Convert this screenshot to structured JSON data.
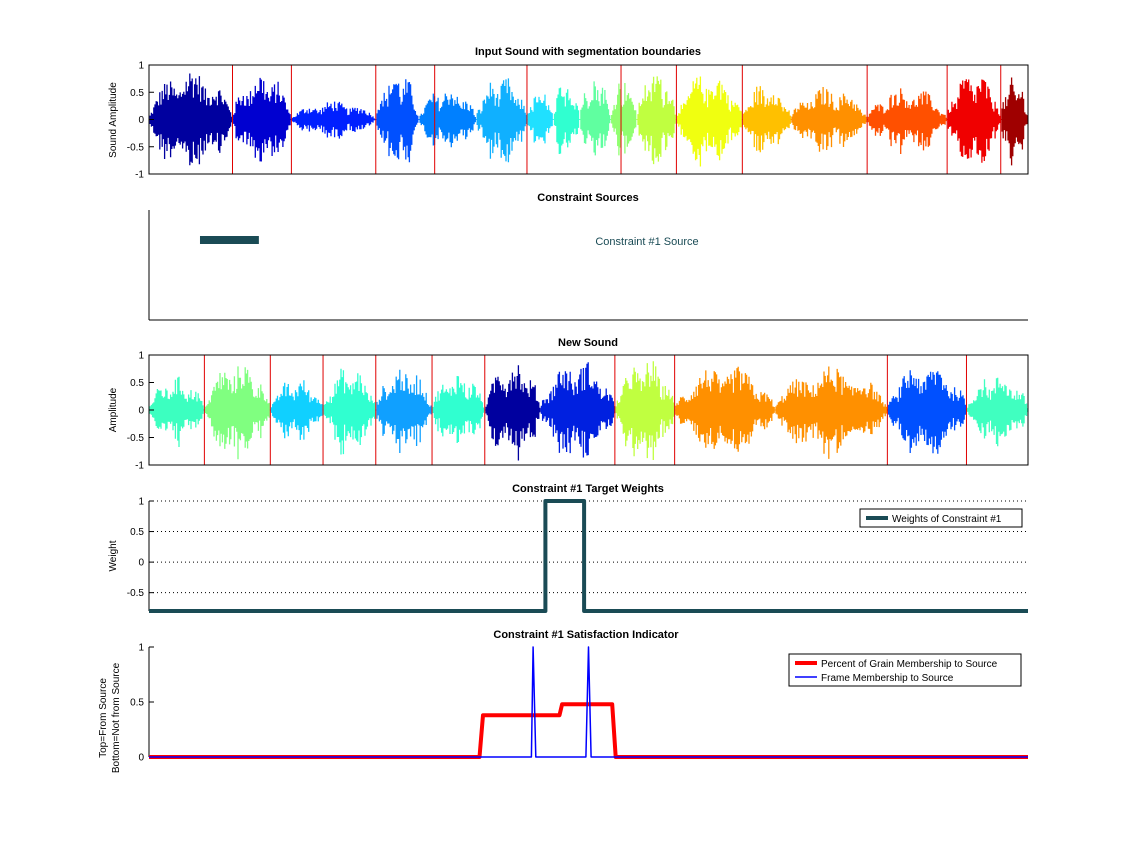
{
  "chart_data": [
    {
      "type": "line",
      "title": "Input Sound with segmentation boundaries",
      "ylabel": "Sound Amplitude",
      "xlabel": "",
      "ylim": [
        -1,
        1
      ],
      "yticks": [
        "1",
        "0.5",
        "0",
        "-0.5",
        "-1"
      ],
      "segments": [
        {
          "start": 0.0,
          "end": 0.095,
          "amp": 0.98,
          "color": "#00009f"
        },
        {
          "start": 0.095,
          "end": 0.162,
          "amp": 0.92,
          "color": "#0000d0"
        },
        {
          "start": 0.162,
          "end": 0.162,
          "amp": 0.0,
          "color": "#0000ff"
        },
        {
          "start": 0.162,
          "end": 0.258,
          "amp": 0.36,
          "color": "#0020ff"
        },
        {
          "start": 0.258,
          "end": 0.307,
          "amp": 0.95,
          "color": "#0050ff"
        },
        {
          "start": 0.307,
          "end": 0.372,
          "amp": 0.62,
          "color": "#0080ff"
        },
        {
          "start": 0.372,
          "end": 0.43,
          "amp": 0.82,
          "color": "#10b0ff"
        },
        {
          "start": 0.43,
          "end": 0.46,
          "amp": 0.55,
          "color": "#20e0ff"
        },
        {
          "start": 0.46,
          "end": 0.49,
          "amp": 0.78,
          "color": "#30ffd0"
        },
        {
          "start": 0.49,
          "end": 0.525,
          "amp": 0.88,
          "color": "#60ffa0"
        },
        {
          "start": 0.525,
          "end": 0.555,
          "amp": 0.82,
          "color": "#90ff70"
        },
        {
          "start": 0.555,
          "end": 0.6,
          "amp": 0.98,
          "color": "#c0ff40"
        },
        {
          "start": 0.6,
          "end": 0.675,
          "amp": 0.92,
          "color": "#f0ff10"
        },
        {
          "start": 0.675,
          "end": 0.73,
          "amp": 0.72,
          "color": "#ffc000"
        },
        {
          "start": 0.73,
          "end": 0.817,
          "amp": 0.62,
          "color": "#ff9000"
        },
        {
          "start": 0.817,
          "end": 0.908,
          "amp": 0.62,
          "color": "#ff5000"
        },
        {
          "start": 0.908,
          "end": 0.969,
          "amp": 0.92,
          "color": "#f00000"
        },
        {
          "start": 0.969,
          "end": 1.0,
          "amp": 0.8,
          "color": "#9f0000"
        }
      ],
      "boundaries": [
        0.095,
        0.162,
        0.258,
        0.325,
        0.43,
        0.537,
        0.6,
        0.675,
        0.817,
        0.908,
        0.969,
        1.0
      ]
    },
    {
      "type": "line",
      "title": "Constraint Sources",
      "ylabel": "",
      "xlabel": "",
      "bar": {
        "start": 0.058,
        "end": 0.125,
        "color": "#1a4b55"
      },
      "label": "Constraint #1 Source"
    },
    {
      "type": "line",
      "title": "New Sound",
      "ylabel": "Amplitude",
      "xlabel": "",
      "ylim": [
        -1,
        1
      ],
      "yticks": [
        "1",
        "0.5",
        "0",
        "-0.5",
        "-1"
      ],
      "segments": [
        {
          "start": 0.0,
          "end": 0.063,
          "amp": 0.62,
          "color": "#3cffc0"
        },
        {
          "start": 0.063,
          "end": 0.138,
          "amp": 0.92,
          "color": "#80ff80"
        },
        {
          "start": 0.138,
          "end": 0.198,
          "amp": 0.6,
          "color": "#10d0ff"
        },
        {
          "start": 0.198,
          "end": 0.258,
          "amp": 0.82,
          "color": "#30ffd0"
        },
        {
          "start": 0.258,
          "end": 0.322,
          "amp": 0.82,
          "color": "#10a0ff"
        },
        {
          "start": 0.322,
          "end": 0.382,
          "amp": 0.72,
          "color": "#30ffd0"
        },
        {
          "start": 0.382,
          "end": 0.445,
          "amp": 0.98,
          "color": "#00009f"
        },
        {
          "start": 0.445,
          "end": 0.53,
          "amp": 0.95,
          "color": "#0020e0"
        },
        {
          "start": 0.53,
          "end": 0.598,
          "amp": 0.98,
          "color": "#c0ff40"
        },
        {
          "start": 0.598,
          "end": 0.712,
          "amp": 0.85,
          "color": "#ff9000"
        },
        {
          "start": 0.712,
          "end": 0.84,
          "amp": 0.82,
          "color": "#ff9000"
        },
        {
          "start": 0.84,
          "end": 0.93,
          "amp": 0.92,
          "color": "#0050ff"
        },
        {
          "start": 0.93,
          "end": 1.0,
          "amp": 0.7,
          "color": "#40ffc0"
        }
      ],
      "boundaries": [
        0.063,
        0.138,
        0.198,
        0.258,
        0.322,
        0.382,
        0.53,
        0.598,
        0.84,
        0.93,
        1.0
      ]
    },
    {
      "type": "line",
      "title": "Constraint #1 Target Weights",
      "ylabel": "Weight",
      "xlabel": "",
      "ylim": [
        -0.8,
        1
      ],
      "yticks": [
        1,
        0.5,
        0,
        -0.5
      ],
      "ytick_labels": [
        "1",
        "0.5",
        "0",
        "-0.5"
      ],
      "grid": "dotted",
      "series": [
        {
          "name": "Weights of Constraint #1",
          "color": "#1a4b55",
          "x": [
            0,
            0.451,
            0.451,
            0.455,
            0.492,
            0.495,
            0.495,
            1
          ],
          "y": [
            -0.8,
            -0.8,
            1,
            1,
            1,
            1,
            -0.8,
            -0.8
          ]
        }
      ],
      "legend_position": "top-right"
    },
    {
      "type": "line",
      "title": "Constraint #1 Satisfaction Indicator",
      "ylabel": "Top=From Source\nBottom=Not from Source",
      "ylabel_lines": [
        "Top=From Source",
        "Bottom=Not from Source"
      ],
      "xlabel": "",
      "ylim": [
        0,
        1
      ],
      "yticks": [
        1,
        0.5,
        0
      ],
      "ytick_labels": [
        "1",
        "0.5",
        "0"
      ],
      "series": [
        {
          "name": "Percent of Grain Membership to Source",
          "color": "#ff0000",
          "x": [
            0,
            0.376,
            0.38,
            0.467,
            0.47,
            0.52,
            0.527,
            0.531,
            1
          ],
          "y": [
            0,
            0,
            0.38,
            0.38,
            0.48,
            0.48,
            0.48,
            0,
            0
          ]
        },
        {
          "name": "Frame Membership to Source",
          "color": "#0000ff",
          "x": [
            0,
            0.435,
            0.437,
            0.44,
            0.497,
            0.5,
            0.503,
            1
          ],
          "y": [
            0,
            0,
            1,
            0,
            0,
            1,
            0,
            0
          ]
        }
      ],
      "legend_position": "top-right"
    }
  ]
}
